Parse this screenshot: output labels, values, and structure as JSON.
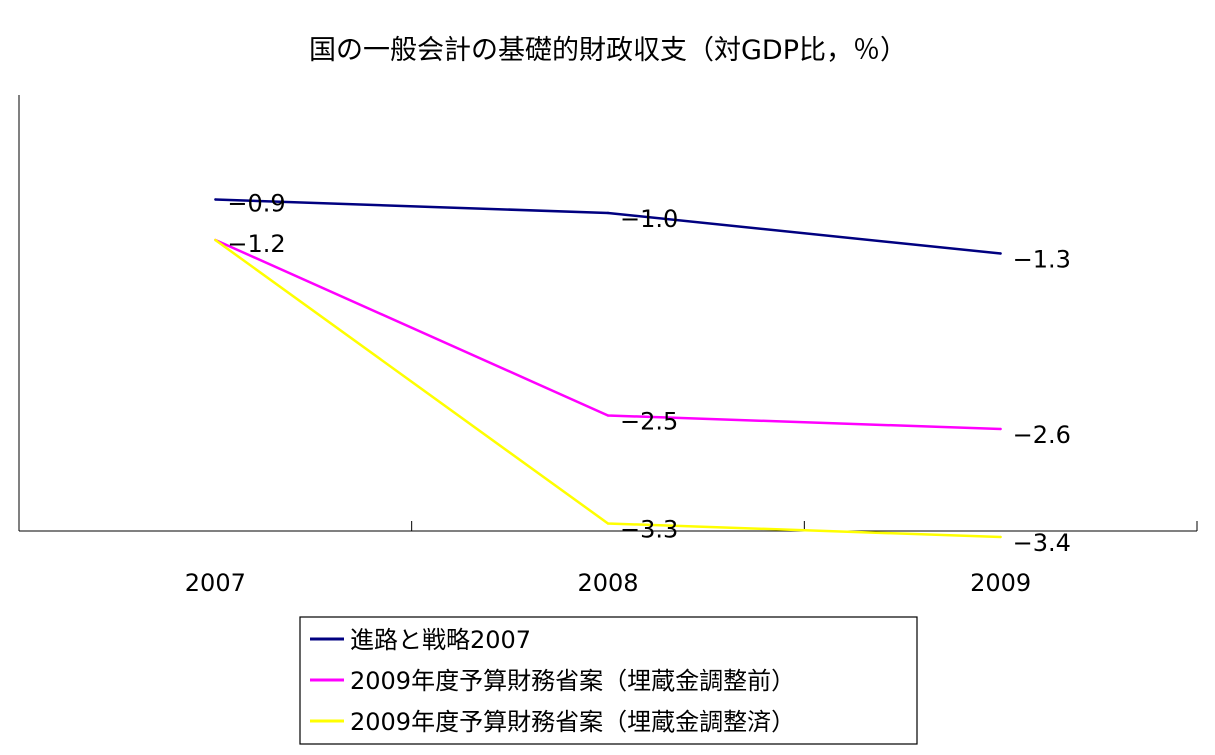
{
  "chart_data": {
    "type": "line",
    "title": "国の一般会計の基礎的財政収支（対GDP比，％）",
    "xlabel": "",
    "ylabel": "",
    "categories": [
      "2007",
      "2008",
      "2009"
    ],
    "ylim": [
      -4.5,
      1.0
    ],
    "grid": false,
    "legend_position": "bottom",
    "series": [
      {
        "name": "進路と戦略2007",
        "color": "#000080",
        "values": [
          -0.9,
          -1.0,
          -1.3
        ],
        "labels": [
          "−0.9",
          "−1.0",
          "−1.3"
        ]
      },
      {
        "name": "2009年度予算財務省案（埋蔵金調整前）",
        "color": "#ff00ff",
        "values": [
          -1.2,
          -2.5,
          -2.6
        ],
        "labels": [
          "−1.2",
          "−2.5",
          "−2.6"
        ]
      },
      {
        "name": "2009年度予算財務省案（埋蔵金調整済）",
        "color": "#ffff00",
        "values": [
          -1.2,
          -3.3,
          -3.4
        ],
        "labels": [
          "",
          "−3.3",
          "−3.4"
        ]
      }
    ]
  }
}
